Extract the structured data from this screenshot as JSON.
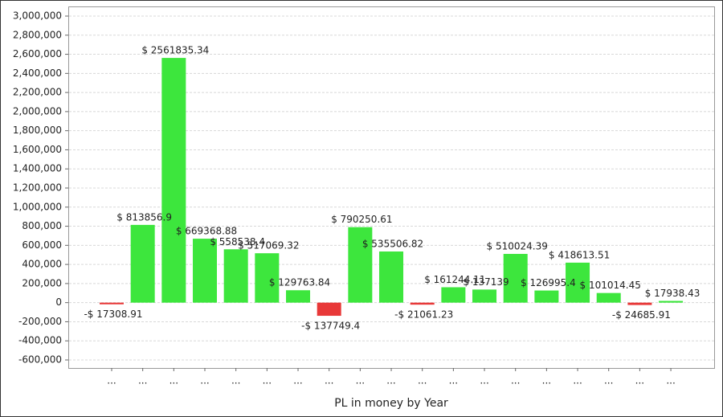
{
  "chart_data": {
    "type": "bar",
    "x_label": "PL in money by Year",
    "categories": [
      "...",
      "...",
      "...",
      "...",
      "...",
      "...",
      "...",
      "...",
      "...",
      "...",
      "...",
      "...",
      "...",
      "...",
      "...",
      "...",
      "...",
      "...",
      "..."
    ],
    "values": [
      -17308.91,
      813856.9,
      2561835.34,
      669368.88,
      558538.4,
      517069.32,
      129763.84,
      -137749.4,
      790250.61,
      535506.82,
      -21061.23,
      161244.11,
      137139,
      510024.39,
      126995.4,
      418613.51,
      101014.45,
      -24685.91,
      17938.43
    ],
    "value_labels": [
      "-$ 17308.91",
      "$ 813856.9",
      "$ 2561835.34",
      "$ 669368.88",
      "$ 558538.4",
      "$ 517069.32",
      "$ 129763.84",
      "-$ 137749.4",
      "$ 790250.61",
      "$ 535506.82",
      "-$ 21061.23",
      "$ 161244.11",
      "$ 137139",
      "$ 510024.39",
      "$ 126995.4",
      "$ 418613.51",
      "$ 101014.45",
      "-$ 24685.91",
      "$ 17938.43"
    ],
    "positive_color": "#3de63d",
    "negative_color": "#e83838",
    "ylim": [
      -600000,
      3000000
    ],
    "yticks": [
      {
        "value": -600000,
        "label": "-600,000"
      },
      {
        "value": -400000,
        "label": "-400,000"
      },
      {
        "value": -200000,
        "label": "-200,000"
      },
      0,
      {
        "value": 200000,
        "label": "200,000"
      },
      {
        "value": 400000,
        "label": "400,000"
      },
      {
        "value": 600000,
        "label": "600,000"
      },
      {
        "value": 800000,
        "label": "800,000"
      },
      {
        "value": 1000000,
        "label": "1,000,000"
      },
      {
        "value": 1200000,
        "label": "1,200,000"
      },
      {
        "value": 1400000,
        "label": "1,400,000"
      },
      {
        "value": 1600000,
        "label": "1,600,000"
      },
      {
        "value": 1800000,
        "label": "1,800,000"
      },
      {
        "value": 2000000,
        "label": "2,000,000"
      },
      {
        "value": 2200000,
        "label": "2,200,000"
      },
      {
        "value": 2400000,
        "label": "2,400,000"
      },
      {
        "value": 2600000,
        "label": "2,600,000"
      },
      {
        "value": 2800000,
        "label": "2,800,000"
      },
      {
        "value": 3000000,
        "label": "3,000,000"
      }
    ],
    "grid": true
  }
}
